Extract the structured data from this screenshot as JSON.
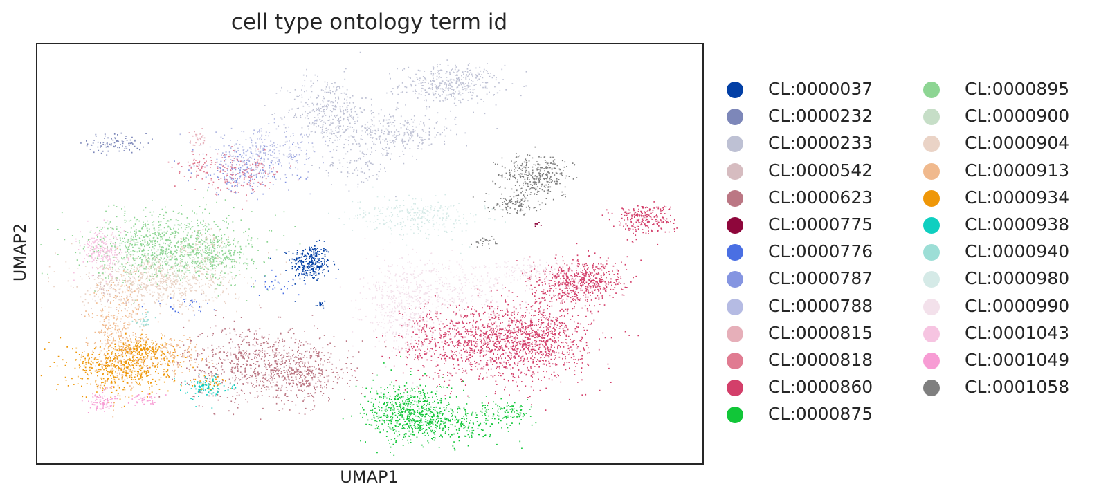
{
  "chart_data": {
    "type": "scatter",
    "title": "cell type ontology term id",
    "xlabel": "UMAP1",
    "ylabel": "UMAP2",
    "xlim": [
      0,
      100
    ],
    "ylim": [
      0,
      100
    ],
    "grid": false,
    "ticks": false,
    "legend_position": "right, two columns",
    "series": [
      {
        "name": "CL:0000037",
        "color": "#023fa5",
        "clusters": [
          {
            "x": 41,
            "y": 48,
            "sx": 1.5,
            "sy": 2.2,
            "n": 260
          },
          {
            "x": 42.5,
            "y": 38,
            "sx": 0.4,
            "sy": 0.8,
            "n": 15
          }
        ]
      },
      {
        "name": "CL:0000232",
        "color": "#7d87b9",
        "clusters": [
          {
            "x": 12,
            "y": 76.5,
            "sx": 2.2,
            "sy": 1.2,
            "n": 90
          }
        ]
      },
      {
        "name": "CL:0000233",
        "color": "#bec1d4",
        "clusters": [
          {
            "x": 62,
            "y": 90.5,
            "sx": 3.8,
            "sy": 2.3,
            "n": 380
          },
          {
            "x": 43.5,
            "y": 84.5,
            "sx": 3,
            "sy": 4,
            "n": 320
          },
          {
            "x": 53,
            "y": 79,
            "sx": 5,
            "sy": 2.4,
            "n": 330
          },
          {
            "x": 48,
            "y": 71,
            "sx": 2.8,
            "sy": 2.5,
            "n": 90
          }
        ]
      },
      {
        "name": "CL:0000542",
        "color": "#d6bcc0",
        "clusters": [
          {
            "x": 11,
            "y": 43,
            "sx": 1.5,
            "sy": 4,
            "n": 50
          }
        ]
      },
      {
        "name": "CL:0000623",
        "color": "#bb7784",
        "clusters": [
          {
            "x": 33,
            "y": 24,
            "sx": 5.5,
            "sy": 4.6,
            "n": 680
          },
          {
            "x": 40,
            "y": 21,
            "sx": 3.4,
            "sy": 3.2,
            "n": 300
          }
        ]
      },
      {
        "name": "CL:0000775",
        "color": "#8e063b",
        "clusters": [
          {
            "x": 75,
            "y": 57,
            "sx": 0.4,
            "sy": 0.4,
            "n": 6
          }
        ]
      },
      {
        "name": "CL:0000776",
        "color": "#4a6fe3",
        "clusters": [
          {
            "x": 37,
            "y": 43,
            "sx": 3.5,
            "sy": 1.6,
            "n": 30
          },
          {
            "x": 22,
            "y": 38,
            "sx": 2.5,
            "sy": 1.2,
            "n": 25
          }
        ]
      },
      {
        "name": "CL:0000787",
        "color": "#8595e1",
        "clusters": [
          {
            "x": 31,
            "y": 70,
            "sx": 3.8,
            "sy": 2.8,
            "n": 180
          }
        ]
      },
      {
        "name": "CL:0000788",
        "color": "#b5bbe3",
        "clusters": [
          {
            "x": 34,
            "y": 74,
            "sx": 4.2,
            "sy": 2.8,
            "n": 270
          }
        ]
      },
      {
        "name": "CL:0000815",
        "color": "#e6afb9",
        "clusters": [
          {
            "x": 24,
            "y": 77.5,
            "sx": 0.7,
            "sy": 1.4,
            "n": 30
          }
        ]
      },
      {
        "name": "CL:0000818",
        "color": "#e07b91",
        "clusters": [
          {
            "x": 30,
            "y": 69,
            "sx": 3.5,
            "sy": 2.4,
            "n": 160
          },
          {
            "x": 24.5,
            "y": 71.5,
            "sx": 1.3,
            "sy": 0.8,
            "n": 40
          }
        ]
      },
      {
        "name": "CL:0000860",
        "color": "#d33f6a",
        "clusters": [
          {
            "x": 70,
            "y": 29,
            "sx": 6.2,
            "sy": 4.6,
            "n": 1300
          },
          {
            "x": 79,
            "y": 42,
            "sx": 2.8,
            "sy": 3.2,
            "n": 260
          },
          {
            "x": 83,
            "y": 44,
            "sx": 2.8,
            "sy": 2.5,
            "n": 340
          },
          {
            "x": 76,
            "y": 31,
            "sx": 2.4,
            "sy": 3.2,
            "n": 200
          },
          {
            "x": 91,
            "y": 58.5,
            "sx": 2.2,
            "sy": 1.8,
            "n": 240
          },
          {
            "x": 58,
            "y": 30,
            "sx": 2,
            "sy": 5,
            "n": 120
          }
        ]
      },
      {
        "name": "CL:0000875",
        "color": "#11c638",
        "clusters": [
          {
            "x": 56,
            "y": 12,
            "sx": 3.4,
            "sy": 3.6,
            "n": 620
          },
          {
            "x": 63,
            "y": 10,
            "sx": 3.6,
            "sy": 2.2,
            "n": 240
          },
          {
            "x": 71,
            "y": 12,
            "sx": 1.6,
            "sy": 1.2,
            "n": 80
          }
        ]
      },
      {
        "name": "CL:0000895",
        "color": "#8dd593",
        "clusters": [
          {
            "x": 20,
            "y": 52,
            "sx": 6,
            "sy": 4.2,
            "n": 950
          },
          {
            "x": 27,
            "y": 49,
            "sx": 2.5,
            "sy": 2.5,
            "n": 150
          }
        ]
      },
      {
        "name": "CL:0000900",
        "color": "#c6dec7",
        "clusters": [
          {
            "x": 19,
            "y": 48,
            "sx": 3.8,
            "sy": 2.4,
            "n": 90
          }
        ]
      },
      {
        "name": "CL:0000904",
        "color": "#ead3c6",
        "clusters": [
          {
            "x": 18,
            "y": 43,
            "sx": 6,
            "sy": 3,
            "n": 680
          },
          {
            "x": 25,
            "y": 53,
            "sx": 1.8,
            "sy": 1.6,
            "n": 60
          }
        ]
      },
      {
        "name": "CL:0000913",
        "color": "#f0b98d",
        "clusters": [
          {
            "x": 12,
            "y": 31,
            "sx": 2.2,
            "sy": 6.5,
            "n": 400
          },
          {
            "x": 20,
            "y": 26,
            "sx": 2.5,
            "sy": 2.2,
            "n": 150
          }
        ]
      },
      {
        "name": "CL:0000934",
        "color": "#ef9708",
        "clusters": [
          {
            "x": 13,
            "y": 23,
            "sx": 4,
            "sy": 3,
            "n": 520
          },
          {
            "x": 16,
            "y": 27.5,
            "sx": 1.8,
            "sy": 1.2,
            "n": 140
          },
          {
            "x": 26,
            "y": 19,
            "sx": 1.2,
            "sy": 0.8,
            "n": 30
          }
        ]
      },
      {
        "name": "CL:0000938",
        "color": "#0fcfc0",
        "clusters": [
          {
            "x": 25.5,
            "y": 18.5,
            "sx": 1.6,
            "sy": 1.3,
            "n": 100
          }
        ]
      },
      {
        "name": "CL:0000940",
        "color": "#9cded6",
        "clusters": [
          {
            "x": 16,
            "y": 34,
            "sx": 0.6,
            "sy": 0.8,
            "n": 30
          }
        ]
      },
      {
        "name": "CL:0000980",
        "color": "#d5eae7",
        "clusters": [
          {
            "x": 57,
            "y": 59,
            "sx": 5,
            "sy": 2.4,
            "n": 280
          }
        ]
      },
      {
        "name": "CL:0000990",
        "color": "#f3e1eb",
        "clusters": [
          {
            "x": 55,
            "y": 38,
            "sx": 3,
            "sy": 5.5,
            "n": 460
          },
          {
            "x": 63,
            "y": 42,
            "sx": 5,
            "sy": 3,
            "n": 240
          },
          {
            "x": 74,
            "y": 46,
            "sx": 3,
            "sy": 1.2,
            "n": 110
          }
        ]
      },
      {
        "name": "CL:0001043",
        "color": "#f6c4e1",
        "clusters": [
          {
            "x": 9.5,
            "y": 51,
            "sx": 1.6,
            "sy": 2.6,
            "n": 220
          }
        ]
      },
      {
        "name": "CL:0001049",
        "color": "#f79cd4",
        "clusters": [
          {
            "x": 9.5,
            "y": 15,
            "sx": 1,
            "sy": 1.3,
            "n": 80
          },
          {
            "x": 16,
            "y": 15.5,
            "sx": 1.2,
            "sy": 0.7,
            "n": 40
          }
        ]
      },
      {
        "name": "CL:0001058",
        "color": "#7f7f7f",
        "clusters": [
          {
            "x": 75,
            "y": 69,
            "sx": 2.5,
            "sy": 2.4,
            "n": 330
          },
          {
            "x": 72,
            "y": 62,
            "sx": 1.8,
            "sy": 1.2,
            "n": 110
          },
          {
            "x": 67,
            "y": 53,
            "sx": 1.1,
            "sy": 0.5,
            "n": 25
          }
        ]
      }
    ]
  }
}
